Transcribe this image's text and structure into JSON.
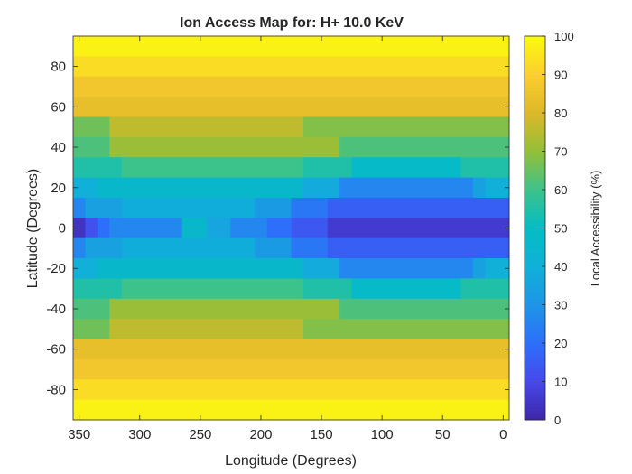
{
  "chart_data": {
    "type": "heatmap",
    "title": "Ion Access Map for: H+ 10.0 KeV",
    "xlabel": "Longitude (Degrees)",
    "ylabel": "Latitude (Degrees)",
    "colorbar_label": "Local Accessibility (%)",
    "colormap": "parula",
    "clim": [
      0,
      100
    ],
    "xlim": [
      355,
      -5
    ],
    "ylim": [
      -95,
      95
    ],
    "x_reversed": true,
    "grid": false,
    "x_ticks": [
      {
        "value": 350,
        "label": "350"
      },
      {
        "value": 300,
        "label": "300"
      },
      {
        "value": 250,
        "label": "250"
      },
      {
        "value": 200,
        "label": "200"
      },
      {
        "value": 150,
        "label": "150"
      },
      {
        "value": 100,
        "label": "100"
      },
      {
        "value": 50,
        "label": "50"
      },
      {
        "value": 0,
        "label": "0"
      }
    ],
    "y_ticks": [
      {
        "value": 80,
        "label": "80"
      },
      {
        "value": 60,
        "label": "60"
      },
      {
        "value": 40,
        "label": "40"
      },
      {
        "value": 20,
        "label": "20"
      },
      {
        "value": 0,
        "label": "0"
      },
      {
        "value": -20,
        "label": "-20"
      },
      {
        "value": -40,
        "label": "-40"
      },
      {
        "value": -60,
        "label": "-60"
      },
      {
        "value": -80,
        "label": "-80"
      }
    ],
    "colorbar_ticks": [
      {
        "value": 0,
        "label": "0"
      },
      {
        "value": 10,
        "label": "10"
      },
      {
        "value": 20,
        "label": "20"
      },
      {
        "value": 30,
        "label": "30"
      },
      {
        "value": 40,
        "label": "40"
      },
      {
        "value": 50,
        "label": "50"
      },
      {
        "value": 60,
        "label": "60"
      },
      {
        "value": 70,
        "label": "70"
      },
      {
        "value": 80,
        "label": "80"
      },
      {
        "value": 90,
        "label": "90"
      },
      {
        "value": 100,
        "label": "100"
      }
    ],
    "longitude_step": 10,
    "latitude_step": 10,
    "rows": [
      {
        "lat": 90,
        "segments": [
          {
            "from": 355,
            "to": -5,
            "value": 98
          }
        ]
      },
      {
        "lat": 80,
        "segments": [
          {
            "from": 355,
            "to": -5,
            "value": 93
          }
        ]
      },
      {
        "lat": 70,
        "segments": [
          {
            "from": 355,
            "to": -5,
            "value": 87
          }
        ]
      },
      {
        "lat": 60,
        "segments": [
          {
            "from": 355,
            "to": -5,
            "value": 83
          }
        ]
      },
      {
        "lat": 50,
        "segments": [
          {
            "from": 355,
            "to": 325,
            "value": 66
          },
          {
            "from": 325,
            "to": 165,
            "value": 76
          },
          {
            "from": 165,
            "to": -5,
            "value": 68
          }
        ]
      },
      {
        "lat": 40,
        "segments": [
          {
            "from": 355,
            "to": 325,
            "value": 62
          },
          {
            "from": 325,
            "to": 135,
            "value": 71
          },
          {
            "from": 135,
            "to": -5,
            "value": 62
          }
        ]
      },
      {
        "lat": 30,
        "segments": [
          {
            "from": 355,
            "to": 315,
            "value": 55
          },
          {
            "from": 315,
            "to": 165,
            "value": 60
          },
          {
            "from": 165,
            "to": 125,
            "value": 55
          },
          {
            "from": 125,
            "to": 35,
            "value": 48
          },
          {
            "from": 35,
            "to": -5,
            "value": 55
          }
        ]
      },
      {
        "lat": 20,
        "segments": [
          {
            "from": 355,
            "to": 335,
            "value": 40
          },
          {
            "from": 335,
            "to": 165,
            "value": 46
          },
          {
            "from": 165,
            "to": 135,
            "value": 38
          },
          {
            "from": 135,
            "to": 25,
            "value": 26
          },
          {
            "from": 25,
            "to": 15,
            "value": 34
          },
          {
            "from": 15,
            "to": -5,
            "value": 40
          }
        ]
      },
      {
        "lat": 10,
        "segments": [
          {
            "from": 355,
            "to": 345,
            "value": 26
          },
          {
            "from": 345,
            "to": 315,
            "value": 34
          },
          {
            "from": 315,
            "to": 205,
            "value": 39
          },
          {
            "from": 205,
            "to": 175,
            "value": 32
          },
          {
            "from": 175,
            "to": 145,
            "value": 22
          },
          {
            "from": 145,
            "to": -5,
            "value": 16
          }
        ]
      },
      {
        "lat": 0,
        "segments": [
          {
            "from": 355,
            "to": 345,
            "value": 4
          },
          {
            "from": 345,
            "to": 335,
            "value": 12
          },
          {
            "from": 335,
            "to": 325,
            "value": 20
          },
          {
            "from": 325,
            "to": 265,
            "value": 26
          },
          {
            "from": 265,
            "to": 245,
            "value": 46
          },
          {
            "from": 245,
            "to": 225,
            "value": 36
          },
          {
            "from": 225,
            "to": 195,
            "value": 26
          },
          {
            "from": 195,
            "to": 175,
            "value": 20
          },
          {
            "from": 175,
            "to": 145,
            "value": 14
          },
          {
            "from": 145,
            "to": -5,
            "value": 6
          }
        ]
      },
      {
        "lat": -10,
        "segments": [
          {
            "from": 355,
            "to": 345,
            "value": 26
          },
          {
            "from": 345,
            "to": 315,
            "value": 34
          },
          {
            "from": 315,
            "to": 205,
            "value": 39
          },
          {
            "from": 205,
            "to": 175,
            "value": 32
          },
          {
            "from": 175,
            "to": 145,
            "value": 22
          },
          {
            "from": 145,
            "to": -5,
            "value": 16
          }
        ]
      },
      {
        "lat": -20,
        "segments": [
          {
            "from": 355,
            "to": 335,
            "value": 40
          },
          {
            "from": 335,
            "to": 165,
            "value": 46
          },
          {
            "from": 165,
            "to": 135,
            "value": 38
          },
          {
            "from": 135,
            "to": 25,
            "value": 26
          },
          {
            "from": 25,
            "to": 15,
            "value": 34
          },
          {
            "from": 15,
            "to": -5,
            "value": 40
          }
        ]
      },
      {
        "lat": -30,
        "segments": [
          {
            "from": 355,
            "to": 315,
            "value": 55
          },
          {
            "from": 315,
            "to": 165,
            "value": 60
          },
          {
            "from": 165,
            "to": 125,
            "value": 55
          },
          {
            "from": 125,
            "to": 35,
            "value": 48
          },
          {
            "from": 35,
            "to": -5,
            "value": 55
          }
        ]
      },
      {
        "lat": -40,
        "segments": [
          {
            "from": 355,
            "to": 325,
            "value": 62
          },
          {
            "from": 325,
            "to": 135,
            "value": 71
          },
          {
            "from": 135,
            "to": -5,
            "value": 62
          }
        ]
      },
      {
        "lat": -50,
        "segments": [
          {
            "from": 355,
            "to": 325,
            "value": 66
          },
          {
            "from": 325,
            "to": 165,
            "value": 76
          },
          {
            "from": 165,
            "to": -5,
            "value": 68
          }
        ]
      },
      {
        "lat": -60,
        "segments": [
          {
            "from": 355,
            "to": -5,
            "value": 83
          }
        ]
      },
      {
        "lat": -70,
        "segments": [
          {
            "from": 355,
            "to": -5,
            "value": 87
          }
        ]
      },
      {
        "lat": -80,
        "segments": [
          {
            "from": 355,
            "to": -5,
            "value": 93
          }
        ]
      },
      {
        "lat": -90,
        "segments": [
          {
            "from": 355,
            "to": -5,
            "value": 98
          }
        ]
      }
    ]
  }
}
